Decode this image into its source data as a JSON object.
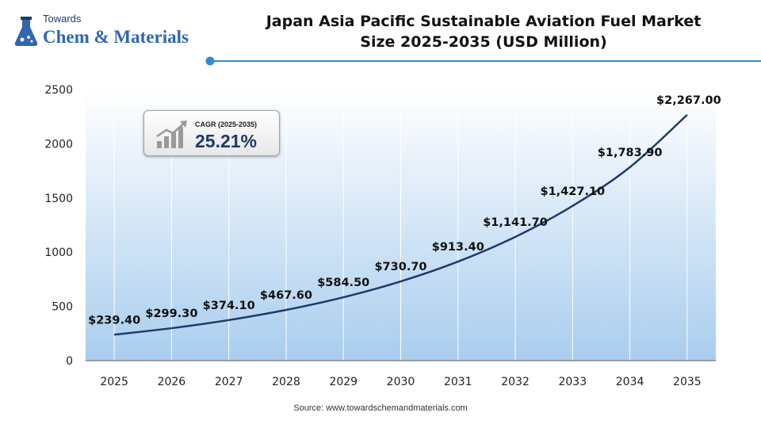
{
  "logo": {
    "top_text": "Towards",
    "main_text": "Chem & Materials",
    "icon": "flask-icon"
  },
  "title_lines": [
    "Japan Asia Pacific Sustainable Aviation Fuel Market",
    "Size 2025-2035 (USD Million)"
  ],
  "cagr": {
    "label": "CAGR (2025-2035)",
    "value": "25.21%",
    "icon": "growth-bar-chart-icon"
  },
  "source": "Source: www.towardschemandmaterials.com",
  "colors": {
    "line": "#1f3a6b",
    "accent": "#2a8fd8",
    "plot_top": "#ffffff",
    "plot_bottom": "#a9cdee"
  },
  "chart_data": {
    "type": "line",
    "title": "Japan Asia Pacific Sustainable Aviation Fuel Market Size 2025-2035 (USD Million)",
    "x": [
      2025,
      2026,
      2027,
      2028,
      2029,
      2030,
      2031,
      2032,
      2033,
      2034,
      2035
    ],
    "series": [
      {
        "values": [
          239.4,
          299.3,
          374.1,
          467.6,
          584.5,
          730.7,
          913.4,
          1141.7,
          1427.1,
          1783.9,
          2267.0
        ],
        "labels": [
          "$239.40",
          "$299.30",
          "$374.10",
          "$467.60",
          "$584.50",
          "$730.70",
          "$913.40",
          "$1,141.70",
          "$1,427.10",
          "$1,783.90",
          "$2,267.00"
        ]
      }
    ],
    "ylim": [
      0,
      2500
    ],
    "yticks": [
      0,
      500,
      1000,
      1500,
      2000,
      2500
    ],
    "xlabel": "",
    "ylabel": "",
    "grid": "vertical",
    "legend": "none"
  }
}
